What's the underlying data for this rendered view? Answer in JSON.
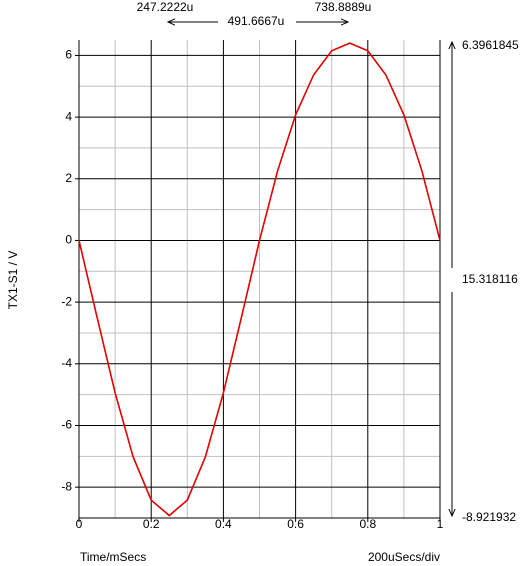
{
  "chart_data": {
    "type": "line",
    "ylabel": "TX1-S1 / V",
    "xlabel": "Time/mSecs",
    "x_scale_label": "200uSecs/div",
    "x": [
      0,
      0.05,
      0.1,
      0.15,
      0.2,
      0.25,
      0.3,
      0.35,
      0.4,
      0.45,
      0.5,
      0.55,
      0.6,
      0.65,
      0.7,
      0.75,
      0.8,
      0.85,
      0.9,
      0.95,
      1
    ],
    "values": [
      0,
      -2.49,
      -4.94,
      -7.02,
      -8.42,
      -8.92,
      -8.42,
      -7.02,
      -4.94,
      -2.49,
      0,
      2.25,
      4.07,
      5.37,
      6.15,
      6.4,
      6.15,
      5.37,
      4.07,
      2.25,
      0
    ],
    "color": "#e00000",
    "xlim": [
      0,
      1
    ],
    "xticks": [
      0,
      0.2,
      0.4,
      0.6,
      0.8,
      1
    ],
    "ylim": [
      -9,
      6.5
    ],
    "yticks": [
      -8,
      -6,
      -4,
      -2,
      0,
      2,
      4,
      6
    ],
    "x_minor_grid": [
      0.1,
      0.3,
      0.5,
      0.7,
      0.9
    ],
    "y_minor_grid": [
      -7,
      -5,
      -3,
      -1,
      1,
      3,
      5
    ],
    "grid": true,
    "cursors": {
      "x1": "247.2222u",
      "dx": "491.6667u",
      "x2": "738.8889u",
      "ytop": "6.3961845",
      "dy": "15.318116",
      "ybottom": "-8.921932"
    }
  }
}
